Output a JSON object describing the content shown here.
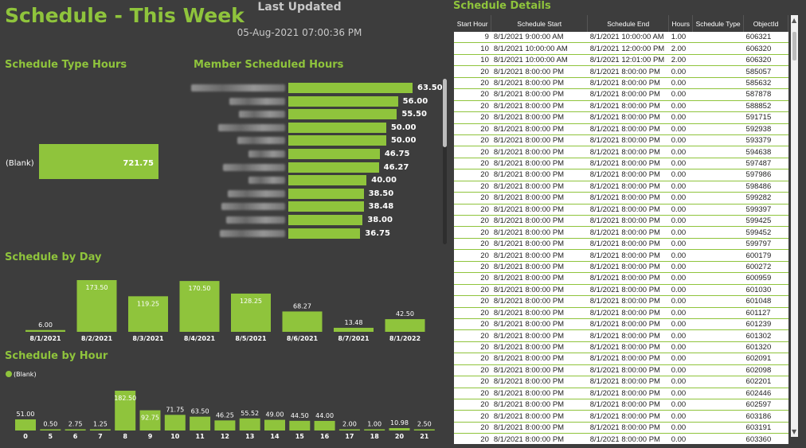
{
  "header": {
    "title": "Schedule - This Week",
    "last_updated_label": "Last Updated",
    "last_updated_value": "05-Aug-2021 07:00:36 PM"
  },
  "colors": {
    "background": "#3d3d3d",
    "accent": "#8fc43c",
    "text": "#ffffff"
  },
  "schedule_type_hours": {
    "title": "Schedule Type Hours",
    "chart_data": {
      "type": "bar",
      "orientation": "horizontal",
      "categories": [
        "(Blank)"
      ],
      "values": [
        721.75
      ],
      "labels": [
        "721.75"
      ]
    }
  },
  "member_scheduled_hours": {
    "title": "Member Scheduled Hours",
    "note_names_obscured": true,
    "chart_data": {
      "type": "bar",
      "orientation": "horizontal",
      "values": [
        63.5,
        56.0,
        55.5,
        50.0,
        50.0,
        46.75,
        46.27,
        40.0,
        38.5,
        38.48,
        38.0,
        36.75
      ],
      "labels": [
        "63.50",
        "56.00",
        "55.50",
        "50.00",
        "50.00",
        "46.75",
        "46.27",
        "40.00",
        "38.50",
        "38.48",
        "38.00",
        "36.75"
      ]
    }
  },
  "schedule_by_day": {
    "title": "Schedule by Day",
    "chart_data": {
      "type": "bar",
      "categories": [
        "8/1/2021",
        "8/2/2021",
        "8/3/2021",
        "8/4/2021",
        "8/5/2021",
        "8/6/2021",
        "8/7/2021",
        "8/1/2022"
      ],
      "values": [
        6.0,
        173.5,
        119.25,
        170.5,
        128.25,
        68.27,
        13.48,
        42.5
      ],
      "labels": [
        "6.00",
        "173.50",
        "119.25",
        "170.50",
        "128.25",
        "68.27",
        "13.48",
        "42.50"
      ]
    }
  },
  "schedule_by_hour": {
    "title": "Schedule by Hour",
    "legend": "(Blank)",
    "chart_data": {
      "type": "bar",
      "categories": [
        "0",
        "5",
        "6",
        "7",
        "8",
        "9",
        "10",
        "11",
        "12",
        "13",
        "14",
        "15",
        "16",
        "17",
        "18",
        "20",
        "21"
      ],
      "values": [
        51.0,
        0.5,
        2.75,
        1.25,
        182.5,
        92.75,
        71.75,
        63.5,
        46.25,
        55.52,
        49.0,
        44.5,
        44.0,
        2.0,
        1.0,
        10.98,
        2.5
      ],
      "labels": [
        "51.00",
        "0.50",
        "2.75",
        "1.25",
        "182.50",
        "92.75",
        "71.75",
        "63.50",
        "46.25",
        "55.52",
        "49.00",
        "44.50",
        "44.00",
        "2.00",
        "1.00",
        "10.98",
        "2.50"
      ]
    }
  },
  "schedule_details": {
    "title": "Schedule Details",
    "columns": [
      "Start Hour",
      "Schedule Start",
      "Schedule End",
      "Hours",
      "Schedule Type",
      "ObjectId"
    ],
    "rows": [
      [
        "9",
        "8/1/2021 9:00:00 AM",
        "8/1/2021 10:00:00 AM",
        "1.00",
        "",
        "606321"
      ],
      [
        "10",
        "8/1/2021 10:00:00 AM",
        "8/1/2021 12:00:00 PM",
        "2.00",
        "",
        "606320"
      ],
      [
        "10",
        "8/1/2021 10:00:00 AM",
        "8/1/2021 12:01:00 PM",
        "2.00",
        "",
        "606320"
      ],
      [
        "20",
        "8/1/2021 8:00:00 PM",
        "8/1/2021 8:00:00 PM",
        "0.00",
        "",
        "585057"
      ],
      [
        "20",
        "8/1/2021 8:00:00 PM",
        "8/1/2021 8:00:00 PM",
        "0.00",
        "",
        "585632"
      ],
      [
        "20",
        "8/1/2021 8:00:00 PM",
        "8/1/2021 8:00:00 PM",
        "0.00",
        "",
        "587878"
      ],
      [
        "20",
        "8/1/2021 8:00:00 PM",
        "8/1/2021 8:00:00 PM",
        "0.00",
        "",
        "588852"
      ],
      [
        "20",
        "8/1/2021 8:00:00 PM",
        "8/1/2021 8:00:00 PM",
        "0.00",
        "",
        "591715"
      ],
      [
        "20",
        "8/1/2021 8:00:00 PM",
        "8/1/2021 8:00:00 PM",
        "0.00",
        "",
        "592938"
      ],
      [
        "20",
        "8/1/2021 8:00:00 PM",
        "8/1/2021 8:00:00 PM",
        "0.00",
        "",
        "593379"
      ],
      [
        "20",
        "8/1/2021 8:00:00 PM",
        "8/1/2021 8:00:00 PM",
        "0.00",
        "",
        "594638"
      ],
      [
        "20",
        "8/1/2021 8:00:00 PM",
        "8/1/2021 8:00:00 PM",
        "0.00",
        "",
        "597487"
      ],
      [
        "20",
        "8/1/2021 8:00:00 PM",
        "8/1/2021 8:00:00 PM",
        "0.00",
        "",
        "597986"
      ],
      [
        "20",
        "8/1/2021 8:00:00 PM",
        "8/1/2021 8:00:00 PM",
        "0.00",
        "",
        "598486"
      ],
      [
        "20",
        "8/1/2021 8:00:00 PM",
        "8/1/2021 8:00:00 PM",
        "0.00",
        "",
        "599282"
      ],
      [
        "20",
        "8/1/2021 8:00:00 PM",
        "8/1/2021 8:00:00 PM",
        "0.00",
        "",
        "599397"
      ],
      [
        "20",
        "8/1/2021 8:00:00 PM",
        "8/1/2021 8:00:00 PM",
        "0.00",
        "",
        "599425"
      ],
      [
        "20",
        "8/1/2021 8:00:00 PM",
        "8/1/2021 8:00:00 PM",
        "0.00",
        "",
        "599452"
      ],
      [
        "20",
        "8/1/2021 8:00:00 PM",
        "8/1/2021 8:00:00 PM",
        "0.00",
        "",
        "599797"
      ],
      [
        "20",
        "8/1/2021 8:00:00 PM",
        "8/1/2021 8:00:00 PM",
        "0.00",
        "",
        "600179"
      ],
      [
        "20",
        "8/1/2021 8:00:00 PM",
        "8/1/2021 8:00:00 PM",
        "0.00",
        "",
        "600272"
      ],
      [
        "20",
        "8/1/2021 8:00:00 PM",
        "8/1/2021 8:00:00 PM",
        "0.00",
        "",
        "600959"
      ],
      [
        "20",
        "8/1/2021 8:00:00 PM",
        "8/1/2021 8:00:00 PM",
        "0.00",
        "",
        "601030"
      ],
      [
        "20",
        "8/1/2021 8:00:00 PM",
        "8/1/2021 8:00:00 PM",
        "0.00",
        "",
        "601048"
      ],
      [
        "20",
        "8/1/2021 8:00:00 PM",
        "8/1/2021 8:00:00 PM",
        "0.00",
        "",
        "601127"
      ],
      [
        "20",
        "8/1/2021 8:00:00 PM",
        "8/1/2021 8:00:00 PM",
        "0.00",
        "",
        "601239"
      ],
      [
        "20",
        "8/1/2021 8:00:00 PM",
        "8/1/2021 8:00:00 PM",
        "0.00",
        "",
        "601302"
      ],
      [
        "20",
        "8/1/2021 8:00:00 PM",
        "8/1/2021 8:00:00 PM",
        "0.00",
        "",
        "601320"
      ],
      [
        "20",
        "8/1/2021 8:00:00 PM",
        "8/1/2021 8:00:00 PM",
        "0.00",
        "",
        "602091"
      ],
      [
        "20",
        "8/1/2021 8:00:00 PM",
        "8/1/2021 8:00:00 PM",
        "0.00",
        "",
        "602098"
      ],
      [
        "20",
        "8/1/2021 8:00:00 PM",
        "8/1/2021 8:00:00 PM",
        "0.00",
        "",
        "602201"
      ],
      [
        "20",
        "8/1/2021 8:00:00 PM",
        "8/1/2021 8:00:00 PM",
        "0.00",
        "",
        "602446"
      ],
      [
        "20",
        "8/1/2021 8:00:00 PM",
        "8/1/2021 8:00:00 PM",
        "0.00",
        "",
        "602597"
      ],
      [
        "20",
        "8/1/2021 8:00:00 PM",
        "8/1/2021 8:00:00 PM",
        "0.00",
        "",
        "603186"
      ],
      [
        "20",
        "8/1/2021 8:00:00 PM",
        "8/1/2021 8:00:00 PM",
        "0.00",
        "",
        "603191"
      ],
      [
        "20",
        "8/1/2021 8:00:00 PM",
        "8/1/2021 8:00:00 PM",
        "0.00",
        "",
        "603360"
      ]
    ]
  }
}
